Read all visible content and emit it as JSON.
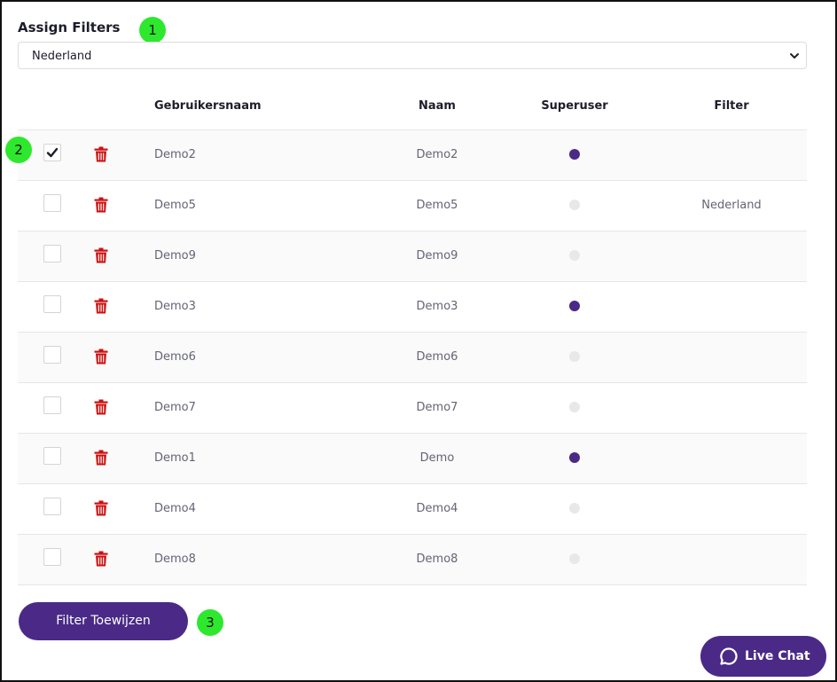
{
  "title": "Assign Filters",
  "badges": [
    "1",
    "2",
    "3"
  ],
  "filter_select": {
    "value": "Nederland"
  },
  "table": {
    "headers": {
      "username": "Gebruikersnaam",
      "name": "Naam",
      "superuser": "Superuser",
      "filter": "Filter"
    },
    "rows": [
      {
        "checked": true,
        "username": "Demo2",
        "name": "Demo2",
        "superuser": true,
        "filter": ""
      },
      {
        "checked": false,
        "username": "Demo5",
        "name": "Demo5",
        "superuser": false,
        "filter": "Nederland"
      },
      {
        "checked": false,
        "username": "Demo9",
        "name": "Demo9",
        "superuser": false,
        "filter": ""
      },
      {
        "checked": false,
        "username": "Demo3",
        "name": "Demo3",
        "superuser": true,
        "filter": ""
      },
      {
        "checked": false,
        "username": "Demo6",
        "name": "Demo6",
        "superuser": false,
        "filter": ""
      },
      {
        "checked": false,
        "username": "Demo7",
        "name": "Demo7",
        "superuser": false,
        "filter": ""
      },
      {
        "checked": false,
        "username": "Demo1",
        "name": "Demo",
        "superuser": true,
        "filter": ""
      },
      {
        "checked": false,
        "username": "Demo4",
        "name": "Demo4",
        "superuser": false,
        "filter": ""
      },
      {
        "checked": false,
        "username": "Demo8",
        "name": "Demo8",
        "superuser": false,
        "filter": ""
      }
    ]
  },
  "assign_button": {
    "label": "Filter Toewijzen"
  },
  "live_chat": {
    "label": "Live Chat",
    "icon": "chat-bubble-icon"
  },
  "colors": {
    "accent": "#4a2a86",
    "delete": "#cc1111",
    "badge": "#2ee82e",
    "superuser_off": "#e8e8ea"
  }
}
